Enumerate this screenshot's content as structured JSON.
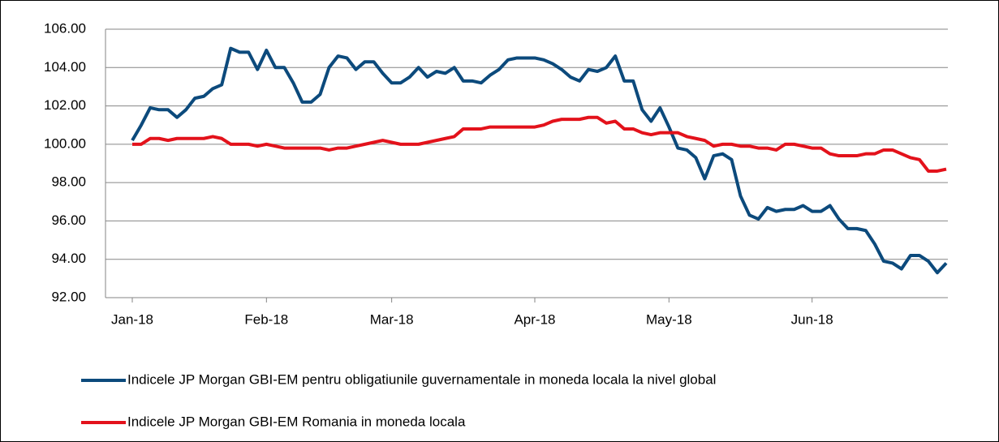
{
  "chart_data": {
    "type": "line",
    "categories": [
      "Jan-18",
      null,
      null,
      null,
      null,
      null,
      null,
      null,
      null,
      null,
      null,
      null,
      null,
      null,
      null,
      "Feb-18",
      null,
      null,
      null,
      null,
      null,
      null,
      null,
      null,
      null,
      null,
      null,
      null,
      null,
      "Mar-18",
      null,
      null,
      null,
      null,
      null,
      null,
      null,
      null,
      null,
      null,
      null,
      null,
      null,
      null,
      null,
      "Apr-18",
      null,
      null,
      null,
      null,
      null,
      null,
      null,
      null,
      null,
      null,
      null,
      null,
      null,
      null,
      "May-18",
      null,
      null,
      null,
      null,
      null,
      null,
      null,
      null,
      null,
      null,
      null,
      null,
      null,
      null,
      null,
      "Jun-18",
      null,
      null,
      null,
      null,
      null,
      null,
      null,
      null,
      null,
      null,
      null,
      null,
      null,
      null,
      null
    ],
    "series": [
      {
        "name": "Indicele JP Morgan GBI-EM pentru obligatiunile guvernamentale in moneda locala la nivel global",
        "color": "#0c4a7c",
        "values": [
          100.2,
          101.0,
          101.9,
          101.8,
          101.8,
          101.4,
          101.8,
          102.4,
          102.5,
          102.9,
          103.1,
          105.0,
          104.8,
          104.8,
          103.9,
          104.9,
          104.0,
          104.0,
          103.2,
          102.2,
          102.2,
          102.6,
          104.0,
          104.6,
          104.5,
          103.9,
          104.3,
          104.3,
          103.7,
          103.2,
          103.2,
          103.5,
          104.0,
          103.5,
          103.8,
          103.7,
          104.0,
          103.3,
          103.3,
          103.2,
          103.6,
          103.9,
          104.4,
          104.5,
          104.5,
          104.5,
          104.4,
          104.2,
          103.9,
          103.5,
          103.3,
          103.9,
          103.8,
          104.0,
          104.6,
          103.3,
          103.3,
          101.8,
          101.2,
          101.9,
          100.9,
          99.8,
          99.7,
          99.3,
          98.2,
          99.4,
          99.5,
          99.2,
          97.3,
          96.3,
          96.1,
          96.7,
          96.5,
          96.6,
          96.6,
          96.8,
          96.5,
          96.5,
          96.8,
          96.1,
          95.6,
          95.6,
          95.5,
          94.8,
          93.9,
          93.8,
          93.5,
          94.2,
          94.2,
          93.9,
          93.3,
          93.8
        ]
      },
      {
        "name": "Indicele JP Morgan GBI-EM Romania in moneda locala",
        "color": "#e3121b",
        "values": [
          100.0,
          100.0,
          100.3,
          100.3,
          100.2,
          100.3,
          100.3,
          100.3,
          100.3,
          100.4,
          100.3,
          100.0,
          100.0,
          100.0,
          99.9,
          100.0,
          99.9,
          99.8,
          99.8,
          99.8,
          99.8,
          99.8,
          99.7,
          99.8,
          99.8,
          99.9,
          100.0,
          100.1,
          100.2,
          100.1,
          100.0,
          100.0,
          100.0,
          100.1,
          100.2,
          100.3,
          100.4,
          100.8,
          100.8,
          100.8,
          100.9,
          100.9,
          100.9,
          100.9,
          100.9,
          100.9,
          101.0,
          101.2,
          101.3,
          101.3,
          101.3,
          101.4,
          101.4,
          101.1,
          101.2,
          100.8,
          100.8,
          100.6,
          100.5,
          100.6,
          100.6,
          100.6,
          100.4,
          100.3,
          100.2,
          99.9,
          100.0,
          100.0,
          99.9,
          99.9,
          99.8,
          99.8,
          99.7,
          100.0,
          100.0,
          99.9,
          99.8,
          99.8,
          99.5,
          99.4,
          99.4,
          99.4,
          99.5,
          99.5,
          99.7,
          99.7,
          99.5,
          99.3,
          99.2,
          98.6,
          98.6,
          98.7
        ]
      }
    ],
    "ylim": [
      92,
      106
    ],
    "yticks": [
      {
        "value": 92,
        "label": "92.00"
      },
      {
        "value": 94,
        "label": "94.00"
      },
      {
        "value": 96,
        "label": "96.00"
      },
      {
        "value": 98,
        "label": "98.00"
      },
      {
        "value": 100,
        "label": "100.00"
      },
      {
        "value": 102,
        "label": "102.00"
      },
      {
        "value": 104,
        "label": "104.00"
      },
      {
        "value": 106,
        "label": "106.00"
      }
    ],
    "grid": true,
    "legend": "bottom"
  }
}
